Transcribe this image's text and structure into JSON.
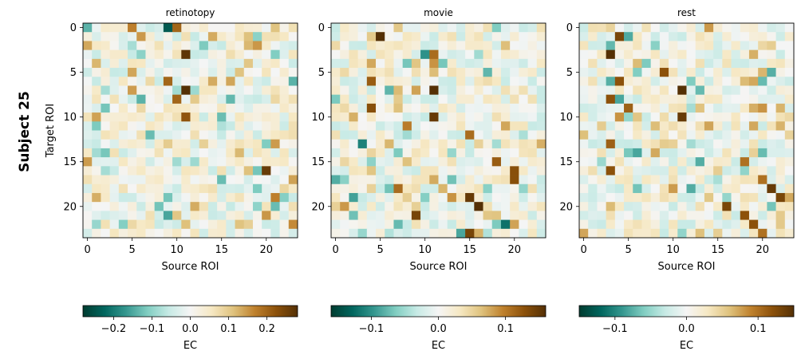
{
  "figure": {
    "subject_label": "Subject 25"
  },
  "chart_data": [
    {
      "type": "heatmap",
      "title": "retinotopy",
      "xlabel": "Source ROI",
      "ylabel": "Target ROI",
      "n": 24,
      "xticks": [
        0,
        5,
        10,
        15,
        20
      ],
      "yticks": [
        0,
        5,
        10,
        15,
        20
      ],
      "colorbar": {
        "label": "EC",
        "vmin": -0.28,
        "vmax": 0.28,
        "ticks": [
          -0.2,
          -0.1,
          0.0,
          0.1,
          0.2
        ],
        "tick_labels": [
          "−0.2",
          "−0.1",
          "0.0",
          "0.1",
          "0.2"
        ]
      },
      "seed": 25101,
      "strong": [
        [
          0,
          9,
          -0.24
        ],
        [
          0,
          10,
          0.2
        ],
        [
          0,
          5,
          0.17
        ],
        [
          3,
          11,
          0.27
        ],
        [
          6,
          9,
          0.2
        ],
        [
          7,
          11,
          0.28
        ],
        [
          8,
          10,
          0.2
        ],
        [
          8,
          6,
          -0.14
        ],
        [
          9,
          2,
          -0.12
        ],
        [
          10,
          11,
          0.22
        ],
        [
          12,
          7,
          -0.13
        ],
        [
          16,
          20,
          0.26
        ],
        [
          16,
          19,
          -0.12
        ],
        [
          19,
          21,
          0.17
        ],
        [
          20,
          19,
          -0.1
        ],
        [
          21,
          20,
          0.15
        ],
        [
          22,
          23,
          0.16
        ],
        [
          17,
          23,
          0.14
        ],
        [
          14,
          17,
          0.12
        ]
      ]
    },
    {
      "type": "heatmap",
      "title": "movie",
      "xlabel": "Source ROI",
      "n": 24,
      "xticks": [
        0,
        5,
        10,
        15,
        20
      ],
      "yticks": [
        0,
        5,
        10,
        15,
        20
      ],
      "colorbar": {
        "label": "EC",
        "vmin": -0.16,
        "vmax": 0.16,
        "ticks": [
          -0.1,
          0.0,
          0.1
        ],
        "tick_labels": [
          "−0.1",
          "0.0",
          "0.1"
        ]
      },
      "seed": 25202,
      "strong": [
        [
          1,
          5,
          0.16
        ],
        [
          3,
          10,
          -0.1
        ],
        [
          3,
          11,
          0.11
        ],
        [
          6,
          4,
          0.12
        ],
        [
          7,
          11,
          0.16
        ],
        [
          9,
          4,
          0.13
        ],
        [
          10,
          11,
          0.15
        ],
        [
          11,
          8,
          0.1
        ],
        [
          12,
          15,
          0.11
        ],
        [
          13,
          3,
          -0.11
        ],
        [
          15,
          18,
          0.12
        ],
        [
          16,
          20,
          0.13
        ],
        [
          17,
          20,
          0.13
        ],
        [
          18,
          7,
          0.11
        ],
        [
          19,
          15,
          0.15
        ],
        [
          20,
          16,
          0.16
        ],
        [
          21,
          9,
          0.14
        ],
        [
          22,
          19,
          -0.12
        ],
        [
          23,
          15,
          0.14
        ],
        [
          19,
          2,
          -0.09
        ]
      ]
    },
    {
      "type": "heatmap",
      "title": "rest",
      "xlabel": "Source ROI",
      "n": 24,
      "xticks": [
        0,
        5,
        10,
        15,
        20
      ],
      "yticks": [
        0,
        5,
        10,
        15,
        20
      ],
      "colorbar": {
        "label": "EC",
        "vmin": -0.15,
        "vmax": 0.15,
        "ticks": [
          -0.1,
          0.0,
          0.1
        ],
        "tick_labels": [
          "−0.1",
          "0.0",
          "0.1"
        ]
      },
      "seed": 25303,
      "strong": [
        [
          1,
          4,
          0.13
        ],
        [
          3,
          3,
          0.15
        ],
        [
          5,
          9,
          0.12
        ],
        [
          6,
          4,
          0.12
        ],
        [
          7,
          11,
          0.15
        ],
        [
          8,
          3,
          0.12
        ],
        [
          9,
          5,
          0.11
        ],
        [
          10,
          11,
          0.14
        ],
        [
          13,
          3,
          0.11
        ],
        [
          16,
          3,
          0.12
        ],
        [
          18,
          21,
          0.14
        ],
        [
          19,
          22,
          0.13
        ],
        [
          20,
          16,
          0.13
        ],
        [
          21,
          18,
          0.12
        ],
        [
          22,
          19,
          0.12
        ],
        [
          23,
          20,
          0.1
        ],
        [
          17,
          20,
          0.1
        ],
        [
          15,
          18,
          0.1
        ]
      ]
    }
  ]
}
